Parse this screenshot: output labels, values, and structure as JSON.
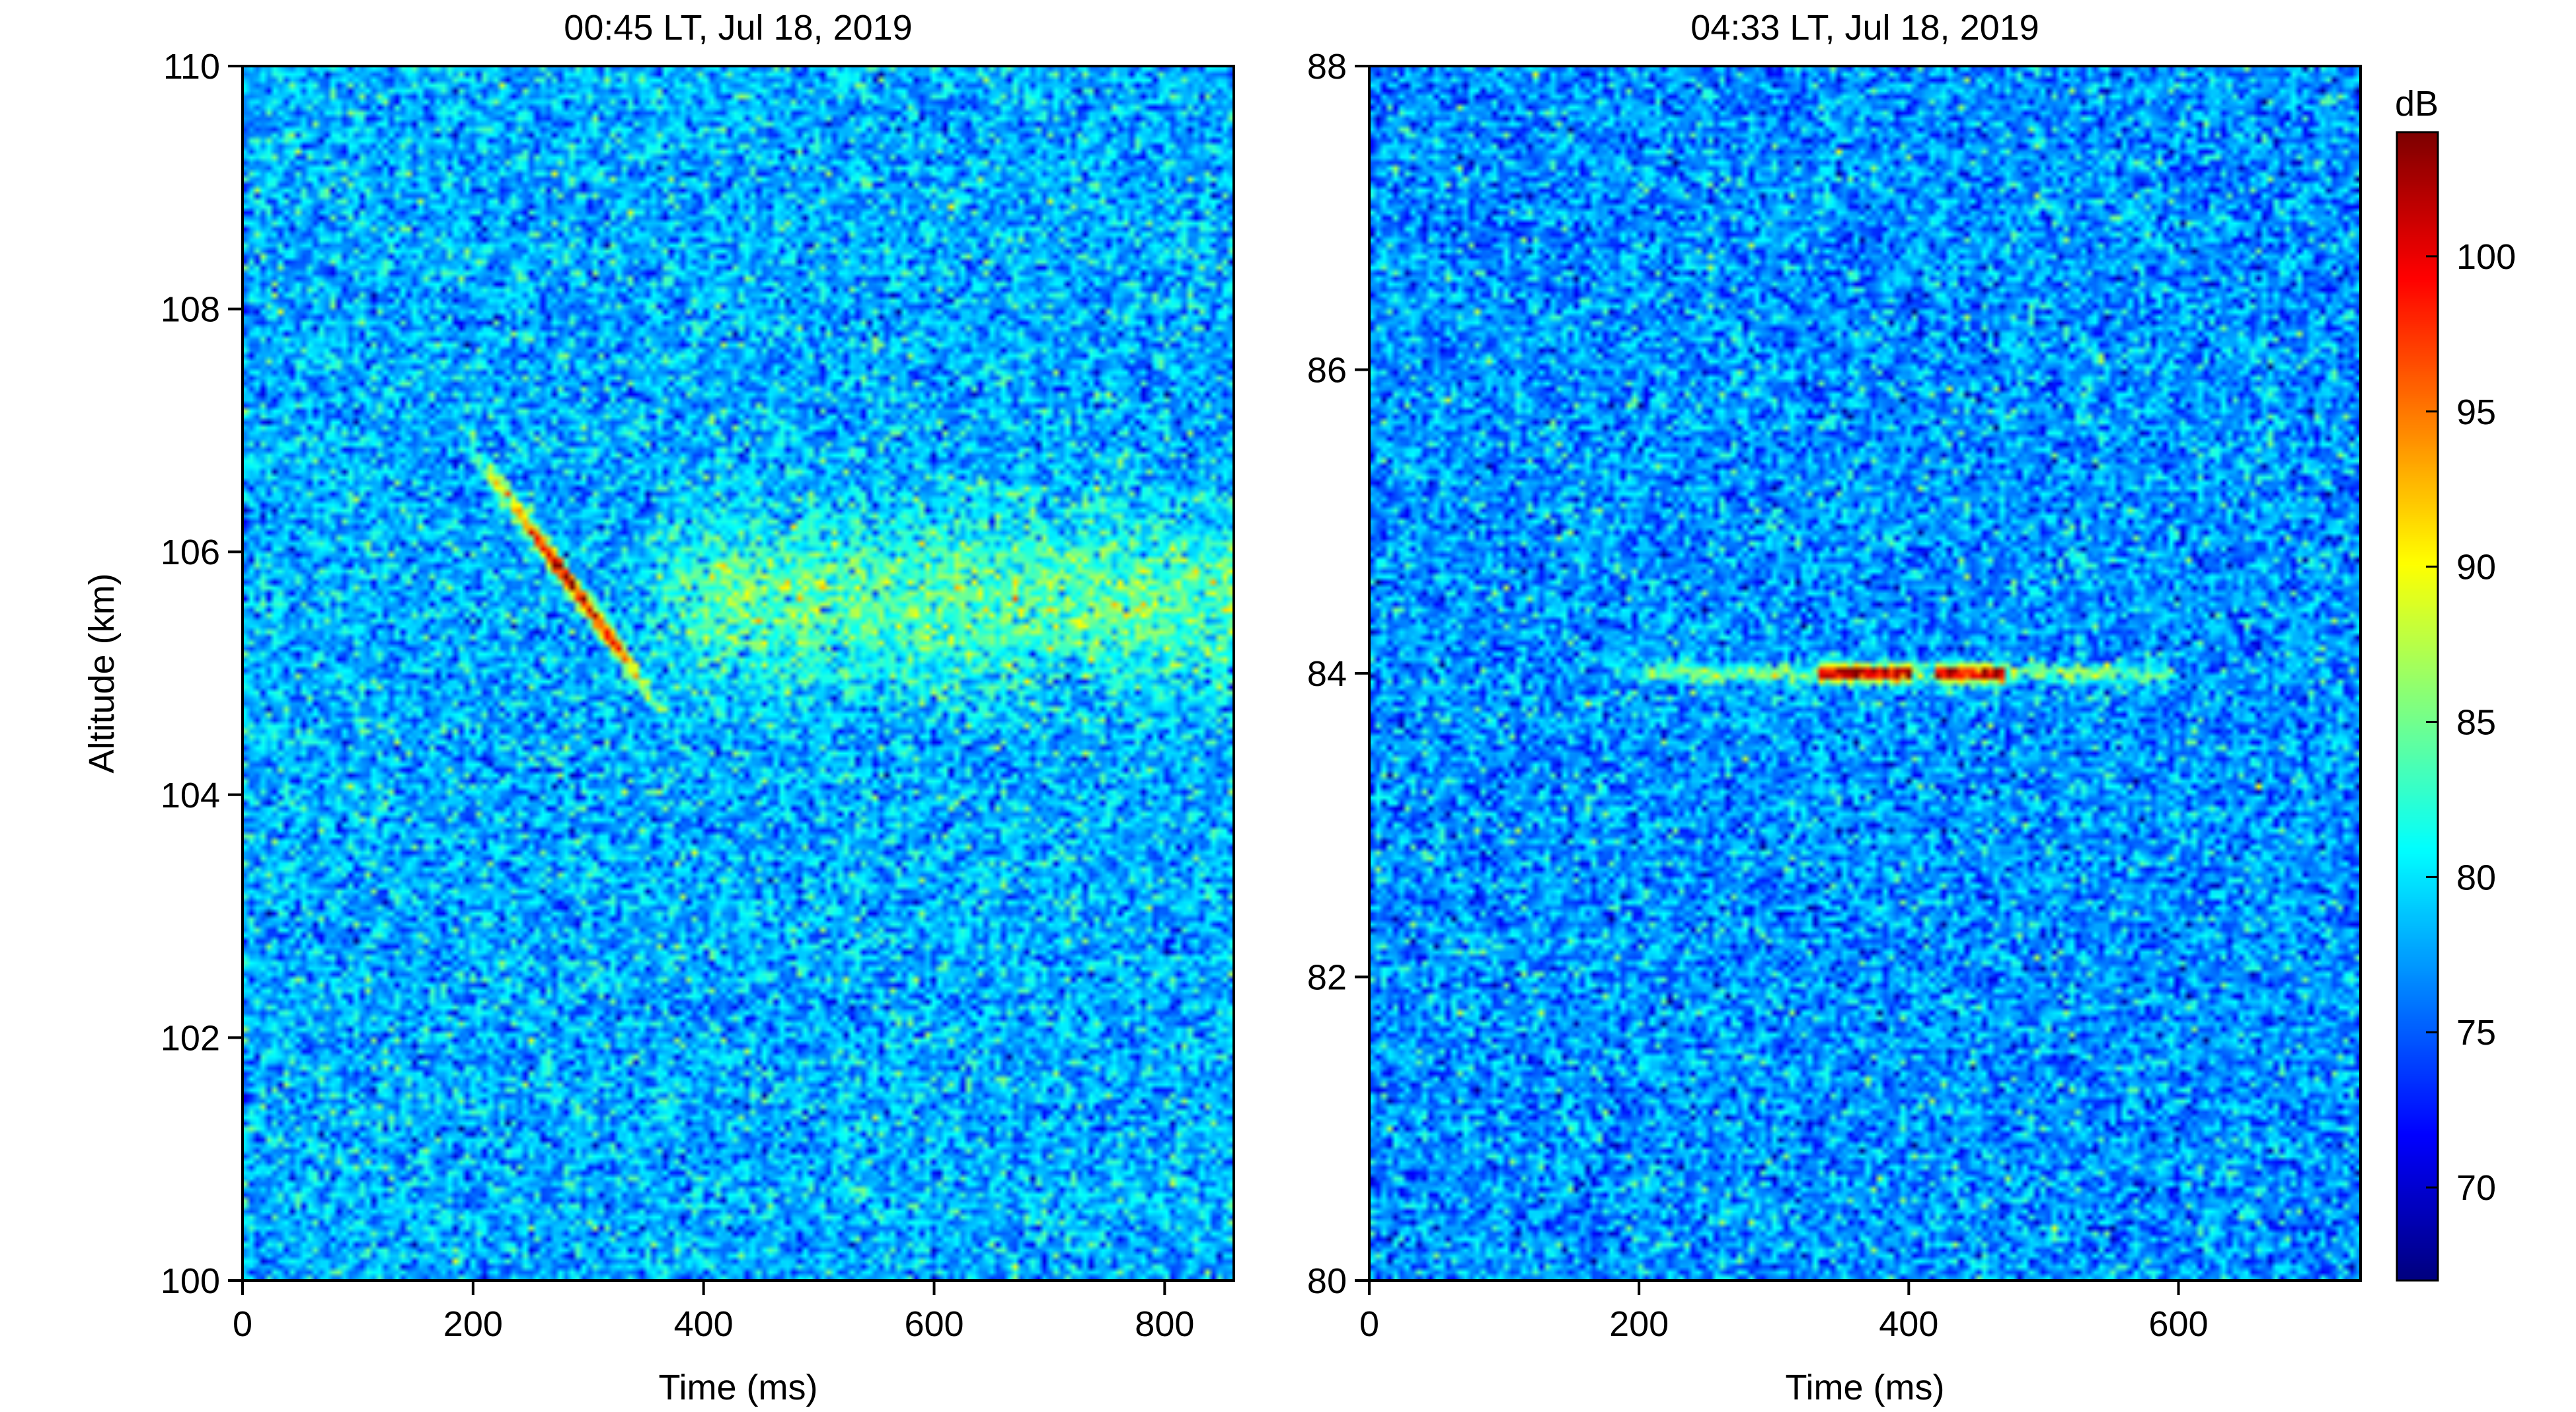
{
  "chart_data": [
    {
      "type": "heatmap",
      "title": "00:45 LT, Jul 18, 2019",
      "xlabel": "Time (ms)",
      "ylabel": "Altitude (km)",
      "xlim": [
        0,
        860
      ],
      "ylim": [
        100,
        110
      ],
      "xticks": [
        0,
        200,
        400,
        600,
        800
      ],
      "yticks": [
        100,
        102,
        104,
        106,
        108,
        110
      ],
      "background_db_mean": 78,
      "features": [
        {
          "kind": "head-echo streak",
          "t_start": 195,
          "alt_start": 106.9,
          "t_end": 380,
          "alt_end": 104.5,
          "peak_db": 103
        },
        {
          "kind": "non-specular trail",
          "t_start": 330,
          "t_end": 860,
          "alt_center": 105.6,
          "alt_halfwidth": 0.45,
          "peak_db": 86
        }
      ]
    },
    {
      "type": "heatmap",
      "title": "04:33 LT, Jul 18, 2019",
      "xlabel": "Time (ms)",
      "ylabel": "",
      "xlim": [
        0,
        735
      ],
      "ylim": [
        80,
        88
      ],
      "xticks": [
        0,
        200,
        400,
        600
      ],
      "yticks": [
        80,
        82,
        84,
        86,
        88
      ],
      "background_db_mean": 77,
      "features": [
        {
          "kind": "horizontal echo",
          "t_start": 170,
          "t_end": 600,
          "alt_center": 84.0,
          "peak_db": 104,
          "bright_segments": [
            [
              335,
              400
            ],
            [
              420,
              470
            ]
          ]
        }
      ]
    }
  ],
  "colorbar": {
    "label": "dB",
    "min": 67,
    "max": 104,
    "ticks": [
      70,
      75,
      80,
      85,
      90,
      95,
      100
    ],
    "colormap": "jet"
  }
}
